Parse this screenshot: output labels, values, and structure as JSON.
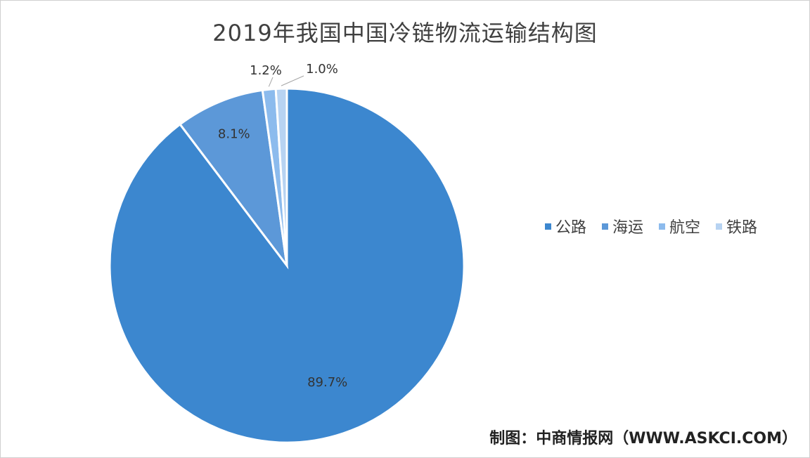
{
  "chart_data": {
    "type": "pie",
    "title": "2019年我国中国冷链物流运输结构图",
    "categories": [
      "公路",
      "海运",
      "航空",
      "铁路"
    ],
    "values": [
      89.7,
      8.1,
      1.2,
      1.0
    ],
    "labels": [
      "89.7%",
      "8.1%",
      "1.2%",
      "1.0%"
    ],
    "colors": [
      "#3c87cf",
      "#5c98d8",
      "#8cbbed",
      "#b7d3f2"
    ],
    "legend_position": "right"
  },
  "source": "制图：中商情报网（WWW.ASKCI.COM）"
}
